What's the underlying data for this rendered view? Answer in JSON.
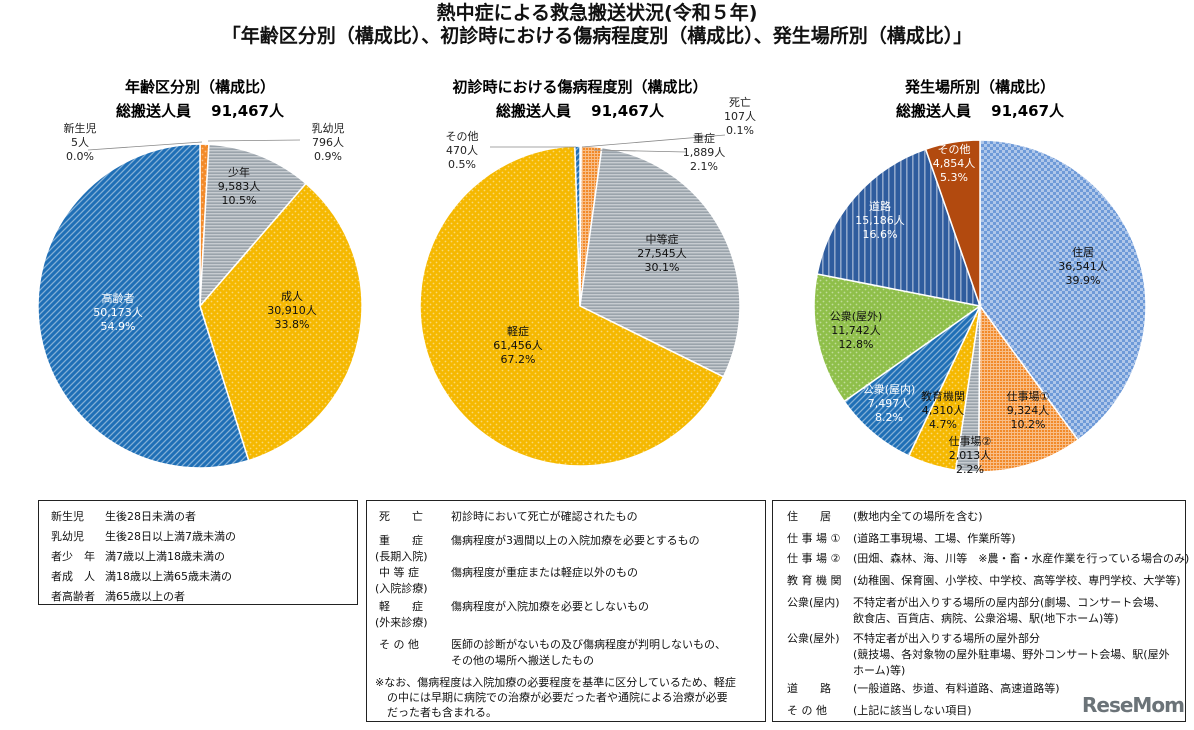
{
  "titles": {
    "line1": "熱中症による救急搬送状況(令和５年)",
    "line2": "「年齢区分別（構成比）、初診時における傷病程度別（構成比）、発生場所別（構成比）」"
  },
  "chart_data": [
    {
      "type": "pie",
      "title": "年齢区分別（構成比）",
      "subtitle": "総搬送人員　 91,467人",
      "slices": [
        {
          "name": "新生児",
          "count": "5人",
          "percent": "0.0%",
          "value": 5,
          "color": "#f28a2a",
          "pattern": "dots"
        },
        {
          "name": "乳幼児",
          "count": "796人",
          "percent": "0.9%",
          "value": 796,
          "color": "#f28a2a",
          "pattern": "dots"
        },
        {
          "name": "少年",
          "count": "9,583人",
          "percent": "10.5%",
          "value": 9583,
          "color": "#9aa3ab",
          "pattern": "hstripe"
        },
        {
          "name": "成人",
          "count": "30,910人",
          "percent": "33.8%",
          "value": 30910,
          "color": "#f5b800",
          "pattern": "dots"
        },
        {
          "name": "高齢者",
          "count": "50,173人",
          "percent": "54.9%",
          "value": 50173,
          "color": "#1f6fb6",
          "pattern": "diag"
        }
      ]
    },
    {
      "type": "pie",
      "title": "初診時における傷病程度別（構成比）",
      "subtitle": "総搬送人員　 91,467人",
      "slices": [
        {
          "name": "死亡",
          "count": "107人",
          "percent": "0.1%",
          "value": 107,
          "color": "#1f4e8c",
          "pattern": "none"
        },
        {
          "name": "重症",
          "count": "1,889人",
          "percent": "2.1%",
          "value": 1889,
          "color": "#f28a2a",
          "pattern": "grid"
        },
        {
          "name": "中等症",
          "count": "27,545人",
          "percent": "30.1%",
          "value": 27545,
          "color": "#9aa3ab",
          "pattern": "hstripe"
        },
        {
          "name": "軽症",
          "count": "61,456人",
          "percent": "67.2%",
          "value": 61456,
          "color": "#f5b800",
          "pattern": "dots"
        },
        {
          "name": "その他",
          "count": "470人",
          "percent": "0.5%",
          "value": 470,
          "color": "#1f6fb6",
          "pattern": "diag"
        }
      ]
    },
    {
      "type": "pie",
      "title": "発生場所別（構成比）",
      "subtitle": "総搬送人員　 91,467人",
      "slices": [
        {
          "name": "住居",
          "count": "36,541人",
          "percent": "39.9%",
          "value": 36541,
          "color": "#6e9ad8",
          "pattern": "check"
        },
        {
          "name": "仕事場①",
          "count": "9,324人",
          "percent": "10.2%",
          "value": 9324,
          "color": "#f28a2a",
          "pattern": "grid"
        },
        {
          "name": "仕事場②",
          "count": "2,013人",
          "percent": "2.2%",
          "value": 2013,
          "color": "#9aa3ab",
          "pattern": "hstripe"
        },
        {
          "name": "教育機関",
          "count": "4,310人",
          "percent": "4.7%",
          "value": 4310,
          "color": "#f5b800",
          "pattern": "dots"
        },
        {
          "name": "公衆(屋内)",
          "count": "7,497人",
          "percent": "8.2%",
          "value": 7497,
          "color": "#1f6fb6",
          "pattern": "diag"
        },
        {
          "name": "公衆(屋外)",
          "count": "11,742人",
          "percent": "12.8%",
          "value": 11742,
          "color": "#8fbf4a",
          "pattern": "dots"
        },
        {
          "name": "道路",
          "count": "15,186人",
          "percent": "16.6%",
          "value": 15186,
          "color": "#2f5c9e",
          "pattern": "vstripe"
        },
        {
          "name": "その他",
          "count": "4,854人",
          "percent": "5.3%",
          "value": 4854,
          "color": "#b24a0f",
          "pattern": "none"
        }
      ]
    }
  ],
  "legend_age": [
    {
      "term": "新生児",
      "desc": "生後28日未満の者"
    },
    {
      "term": "乳幼児",
      "desc": "生後28日以上満7歳未満の"
    },
    {
      "term": "者少　年",
      "desc": "満7歳以上満18歳未満の"
    },
    {
      "term": "者成　人",
      "desc": "満18歳以上満65歳未満の"
    },
    {
      "term": "者高齢者",
      "desc": "満65歳以上の者"
    }
  ],
  "legend_severity": [
    {
      "term": "死　　亡",
      "sub": "",
      "desc": "初診時において死亡が確認されたもの",
      "desc2": ""
    },
    {
      "term": "重　　症",
      "sub": "(長期入院)",
      "desc": "傷病程度が3週間以上の入院加療を必要とするもの",
      "desc2": ""
    },
    {
      "term": "中 等 症",
      "sub": "(入院診療)",
      "desc": "傷病程度が重症または軽症以外のもの",
      "desc2": ""
    },
    {
      "term": "軽　　症",
      "sub": "(外来診療)",
      "desc": "傷病程度が入院加療を必要としないもの",
      "desc2": ""
    },
    {
      "term": "そ の 他",
      "sub": "",
      "desc": "医師の診断がないもの及び傷病程度が判明しないもの、",
      "desc2": "その他の場所へ搬送したもの"
    }
  ],
  "legend_severity_note": [
    "※なお、傷病程度は入院加療の必要程度を基準に区分しているため、軽症",
    "の中には早期に病院での治療が必要だった者や通院による治療が必要",
    "だった者も含まれる。"
  ],
  "legend_place": [
    {
      "term": "住　　居",
      "desc": "(敷地内全ての場所を含む)",
      "desc2": ""
    },
    {
      "term": "仕 事 場 ①",
      "desc": "(道路工事現場、工場、作業所等)",
      "desc2": ""
    },
    {
      "term": "仕 事 場 ②",
      "desc": "(田畑、森林、海、川等　※農・畜・水産作業を行っている場合のみ)",
      "desc2": ""
    },
    {
      "term": "教 育 機 関",
      "desc": "(幼稚園、保育園、小学校、中学校、高等学校、専門学校、大学等)",
      "desc2": ""
    },
    {
      "term": "公衆(屋内)",
      "desc": "不特定者が出入りする場所の屋内部分(劇場、コンサート会場、",
      "desc2": "飲食店、百貨店、病院、公衆浴場、駅(地下ホーム)等)"
    },
    {
      "term": "公衆(屋外)",
      "desc": "不特定者が出入りする場所の屋外部分",
      "desc2": "(競技場、各対象物の屋外駐車場、野外コンサート会場、駅(屋外",
      "desc3": "ホーム)等)"
    },
    {
      "term": "道　　路",
      "desc": "(一般道路、歩道、有料道路、高速道路等)",
      "desc2": ""
    },
    {
      "term": "そ の 他",
      "desc": "(上記に該当しない項目)",
      "desc2": ""
    }
  ],
  "logo": "ReseMom"
}
